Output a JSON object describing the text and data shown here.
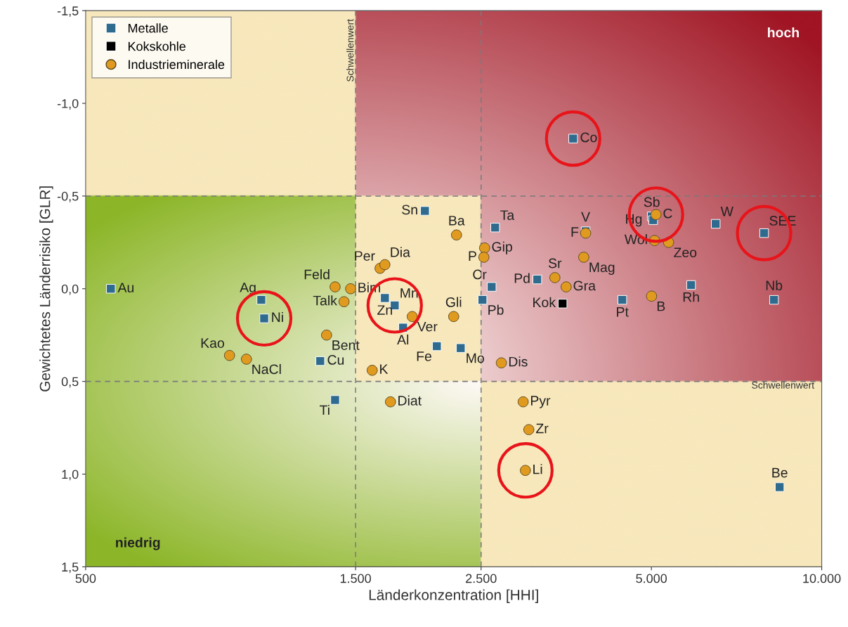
{
  "chart_data": {
    "type": "scatter",
    "xlabel": "Länderkonzentration [HHI]",
    "ylabel": "Gewichtetes Länderrisiko [GLR]",
    "log": "x",
    "xlim": [
      500,
      10000
    ],
    "ylim": [
      1.5,
      -1.5
    ],
    "xticks": [
      500,
      {
        "value": 1500,
        "label": "1.500"
      },
      {
        "value": 2500,
        "label": "2.500"
      },
      {
        "value": 5000,
        "label": "5.000"
      },
      {
        "value": 10000,
        "label": "10.000"
      }
    ],
    "yticks": [
      {
        "value": -1.5,
        "label": "-1,5"
      },
      {
        "value": -1.0,
        "label": "-1,0"
      },
      {
        "value": -0.5,
        "label": "-0,5"
      },
      {
        "value": 0.0,
        "label": "0,0"
      },
      {
        "value": 0.5,
        "label": "0,5"
      },
      {
        "value": 1.0,
        "label": "1,0"
      },
      {
        "value": 1.5,
        "label": "1,5"
      }
    ],
    "grid": false,
    "legend": "top left",
    "series": [
      {
        "name": "Metalle",
        "color": "#2e6b8e",
        "marker": "square",
        "x": [
          554,
          1022,
          1034,
          1299,
          1380,
          1989,
          1690,
          1759,
          1820,
          2088,
          2301,
          2647,
          2610,
          2514,
          3142,
          3636,
          3826,
          5007,
          5036,
          6496,
          7910,
          5876,
          4441,
          8235,
          8426
        ],
        "values": [
          0.0,
          0.06,
          0.16,
          0.39,
          0.6,
          -0.42,
          0.05,
          0.09,
          0.21,
          0.31,
          0.32,
          -0.33,
          -0.01,
          0.06,
          -0.05,
          -0.81,
          -0.31,
          -0.39,
          -0.37,
          -0.35,
          -0.3,
          -0.02,
          0.06,
          0.06,
          1.07
        ],
        "value_labels": [
          "Au",
          "Ag",
          "Ni",
          "Cu",
          "Ti",
          "Sn",
          "Zn",
          "Mn",
          "Al",
          "Fe",
          "Mo",
          "Ta",
          "Cr",
          "Pb",
          "Pd",
          "Co",
          "V",
          "Sb",
          "Hg",
          "W",
          "SEE",
          "Rh",
          "Pt",
          "Nb",
          "Be"
        ]
      },
      {
        "name": "Kokskohle",
        "color": "#000000",
        "marker": "square",
        "x": [
          3483
        ],
        "values": [
          0.08
        ],
        "value_labels": [
          "Kok"
        ]
      },
      {
        "name": "Industrieminerale",
        "color": "#e09a20",
        "marker": "circle",
        "x": [
          898,
          962,
          1333,
          1431,
          1380,
          1470,
          1657,
          1690,
          1605,
          1729,
          1889,
          2236,
          2262,
          2536,
          2528,
          2715,
          2967,
          3036,
          2994,
          3376,
          3534,
          3796,
          3826,
          5094,
          5065,
          5362,
          5003
        ],
        "values": [
          0.36,
          0.38,
          0.25,
          0.07,
          -0.01,
          -0.0,
          -0.11,
          -0.13,
          0.44,
          0.61,
          0.15,
          0.15,
          -0.29,
          -0.22,
          -0.17,
          0.4,
          0.61,
          0.76,
          0.98,
          -0.06,
          -0.01,
          -0.17,
          -0.3,
          -0.4,
          -0.26,
          -0.25,
          0.04
        ],
        "value_labels": [
          "Kao",
          "NaCl",
          "Bent",
          "Talk",
          "Feld",
          "Bim",
          "Per",
          "Dia",
          "K",
          "Diat",
          "Ver",
          "Gli",
          "Ba",
          "Gip",
          "P",
          "Dis",
          "Pyr",
          "Zr",
          "Li",
          "Sr",
          "Gra",
          "Mag",
          "F",
          "C",
          "Wol",
          "Zeo",
          "B"
        ]
      }
    ],
    "ref_lines": [
      {
        "axis": "x",
        "value": 1500,
        "label": "Schwellenwert",
        "line_style": "dashed",
        "color": "#7a7a7a"
      },
      {
        "axis": "x",
        "value": 2500,
        "line_style": "dashed",
        "color": "#7a7a7a"
      },
      {
        "axis": "y",
        "value": -0.5,
        "line_style": "dashed",
        "color": "#7a7a7a"
      },
      {
        "axis": "y",
        "value": 0.5,
        "label": "Schwellenwert",
        "line_style": "dashed",
        "color": "#7a7a7a"
      }
    ],
    "annotations": [
      "hoch",
      "niedrig"
    ]
  }
}
